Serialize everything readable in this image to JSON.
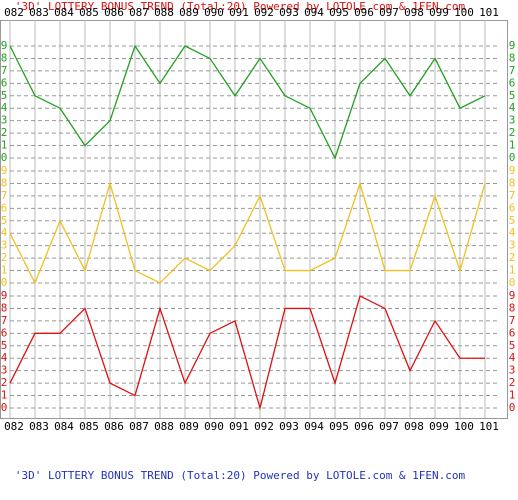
{
  "chart_data": {
    "type": "line",
    "title": "'3D' LOTTERY BONUS TREND (Total:20)  Powered by LOTOLE.com & 1FEN.com",
    "categories": [
      "082",
      "083",
      "084",
      "085",
      "086",
      "087",
      "088",
      "089",
      "090",
      "091",
      "092",
      "093",
      "094",
      "095",
      "096",
      "097",
      "098",
      "099",
      "100",
      "101"
    ],
    "ylim": [
      0,
      9
    ],
    "yticks": [
      0,
      1,
      2,
      3,
      4,
      5,
      6,
      7,
      8,
      9
    ],
    "grid": true,
    "series": [
      {
        "color": "#22a022",
        "values": [
          9,
          5,
          4,
          1,
          3,
          9,
          6,
          9,
          8,
          5,
          8,
          5,
          4,
          0,
          6,
          8,
          5,
          8,
          4,
          5
        ]
      },
      {
        "color": "#f0c020",
        "values": [
          4,
          0,
          5,
          1,
          8,
          1,
          0,
          2,
          1,
          3,
          7,
          1,
          1,
          2,
          8,
          1,
          1,
          7,
          1,
          8
        ]
      },
      {
        "color": "#dd1111",
        "values": [
          2,
          6,
          6,
          8,
          2,
          1,
          8,
          2,
          6,
          7,
          0,
          8,
          8,
          2,
          9,
          8,
          3,
          7,
          4,
          4
        ]
      }
    ]
  }
}
